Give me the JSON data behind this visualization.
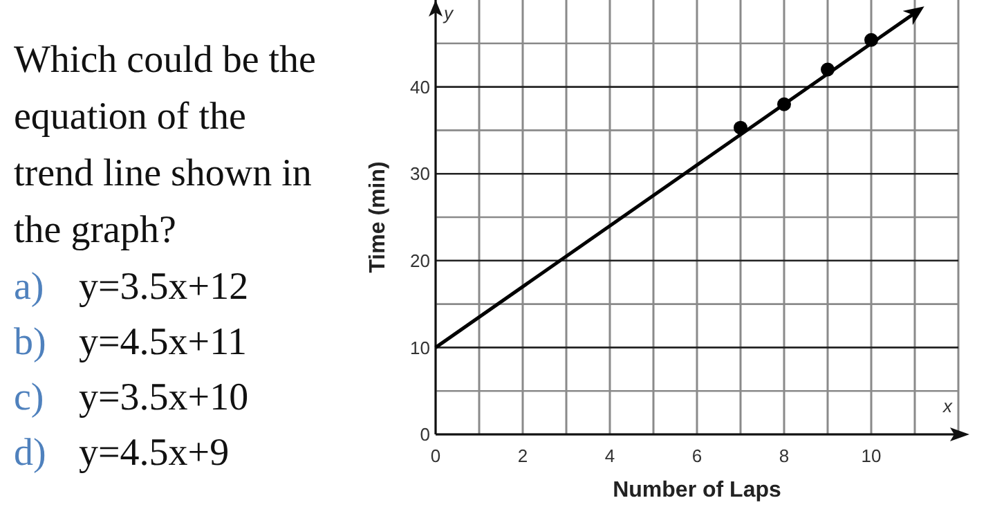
{
  "chart_data": {
    "type": "scatter",
    "xlabel": "Number of Laps",
    "ylabel": "Time (min)",
    "xlim": [
      0,
      12
    ],
    "ylim": [
      0,
      50
    ],
    "xticks": [
      0,
      {
        "value": 1,
        "label": null
      },
      2,
      {
        "value": 3,
        "label": null
      },
      4,
      {
        "value": 5,
        "label": null
      },
      6,
      {
        "value": 7,
        "label": null
      },
      8,
      {
        "value": 9,
        "label": null
      },
      10,
      {
        "value": 11,
        "label": null
      }
    ],
    "yticks": [
      0,
      {
        "value": 5,
        "label": null
      },
      10,
      {
        "value": 15,
        "label": null
      },
      20,
      {
        "value": 25,
        "label": null
      },
      30,
      {
        "value": 35,
        "label": null
      },
      40,
      {
        "value": 45,
        "label": null
      }
    ],
    "grid": true,
    "series": [
      {
        "color": "#000000",
        "marker": "circle",
        "x": [
          7,
          8,
          9,
          10
        ],
        "values": [
          35.3,
          38,
          42,
          45.4
        ]
      },
      {
        "type": "line",
        "color": "#000000",
        "x": [
          0,
          11
        ],
        "values": [
          10,
          48.5
        ],
        "line_style": "solid"
      }
    ],
    "annotations": [
      "Which could be the equation of the trend line shown in the graph?",
      "a) y=3.5x+12",
      "b) y=4.5x+11",
      "c) y=3.5x+10",
      "d) y=4.5x+9",
      "y",
      "x"
    ]
  }
}
